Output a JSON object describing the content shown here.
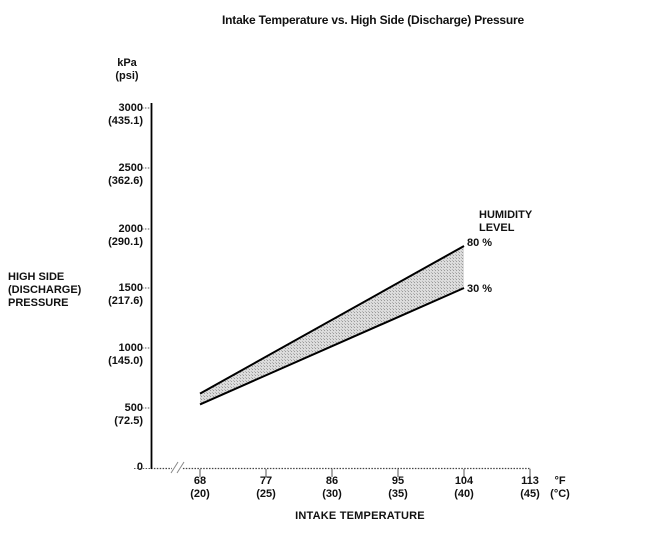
{
  "title": "Intake Temperature vs. High Side (Discharge) Pressure",
  "y_axis": {
    "unit_line1": "kPa",
    "unit_line2": "(psi)",
    "title_line1": "HIGH SIDE",
    "title_line2": "(DISCHARGE)",
    "title_line3": "PRESSURE",
    "origin": "0",
    "ticks": [
      {
        "kpa": "3000",
        "psi": "(435.1)"
      },
      {
        "kpa": "2500",
        "psi": "(362.6)"
      },
      {
        "kpa": "2000",
        "psi": "(290.1)"
      },
      {
        "kpa": "1500",
        "psi": "(217.6)"
      },
      {
        "kpa": "1000",
        "psi": "(145.0)"
      },
      {
        "kpa": "500",
        "psi": "(72.5)"
      }
    ]
  },
  "x_axis": {
    "title": "INTAKE TEMPERATURE",
    "unit_line1": "°F",
    "unit_line2": "(°C)",
    "ticks": [
      {
        "f": "68",
        "c": "(20)"
      },
      {
        "f": "77",
        "c": "(25)"
      },
      {
        "f": "86",
        "c": "(30)"
      },
      {
        "f": "95",
        "c": "(35)"
      },
      {
        "f": "104",
        "c": "(40)"
      },
      {
        "f": "113",
        "c": "(45)"
      }
    ]
  },
  "legend": {
    "title_line1": "HUMIDITY",
    "title_line2": "LEVEL",
    "upper_label": "80 %",
    "lower_label": "30 %"
  },
  "colors": {
    "background": "#ffffff",
    "text": "#111111",
    "line": "#000000",
    "band_fill": "#dcdcdc",
    "band_dot": "#9a9a9a",
    "axis_dotted": "#444444"
  },
  "chart_data": {
    "type": "area",
    "title": "Intake Temperature vs. High Side (Discharge) Pressure",
    "xlabel": "INTAKE TEMPERATURE",
    "ylabel": "HIGH SIDE (DISCHARGE) PRESSURE",
    "x_unit": "°F (°C)",
    "y_unit": "kPa (psi)",
    "x_ticks_f": [
      68,
      77,
      86,
      95,
      104,
      113
    ],
    "x_ticks_c": [
      20,
      25,
      30,
      35,
      40,
      45
    ],
    "y_ticks_kpa": [
      0,
      500,
      1000,
      1500,
      2000,
      2500,
      3000
    ],
    "y_ticks_psi": [
      0,
      72.5,
      145.0,
      217.6,
      290.1,
      362.6,
      435.1
    ],
    "xlim": [
      68,
      113
    ],
    "ylim": [
      0,
      3000
    ],
    "legend_title": "HUMIDITY LEVEL",
    "grid": false,
    "axis_break_on_x": true,
    "band": "stippled area between 30 % and 80 % humidity lines, spanning 68–104 °F",
    "series": [
      {
        "name": "80 %",
        "x_f": [
          68,
          104
        ],
        "values_kpa": [
          620,
          1850
        ]
      },
      {
        "name": "30 %",
        "x_f": [
          68,
          104
        ],
        "values_kpa": [
          530,
          1500
        ]
      }
    ]
  }
}
